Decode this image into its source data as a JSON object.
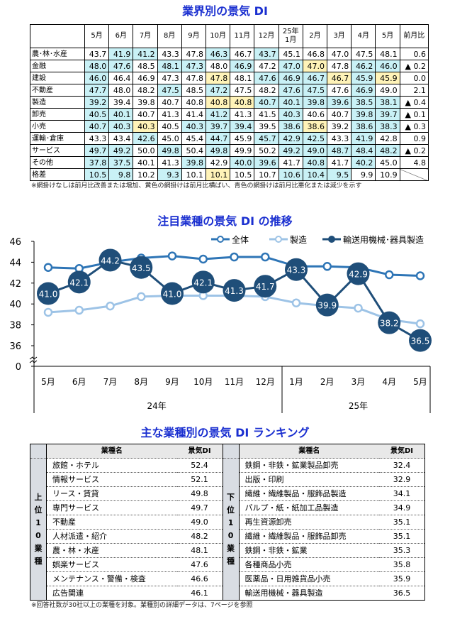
{
  "table1": {
    "title": "業界別の景気 DI",
    "headers": [
      "5月",
      "6月",
      "7月",
      "8月",
      "9月",
      "10月",
      "11月",
      "12月",
      "25年\n1月",
      "2月",
      "3月",
      "4月",
      "5月",
      "前月比"
    ],
    "rows": [
      {
        "label": "農･林･水産",
        "values": [
          "43.7",
          "41.9",
          "41.2",
          "43.3",
          "47.8",
          "46.3",
          "46.7",
          "43.7",
          "45.1",
          "46.8",
          "47.0",
          "47.5",
          "48.1"
        ],
        "shade": "nbbnnbnbnnnnn",
        "change": "0.6"
      },
      {
        "label": "金融",
        "values": [
          "48.0",
          "47.6",
          "48.5",
          "48.1",
          "47.3",
          "48.0",
          "46.9",
          "47.2",
          "47.0",
          "47.0",
          "47.8",
          "46.2",
          "46.0"
        ],
        "shade": "bbnbbnbnbynbb",
        "change": "▲ 0.2"
      },
      {
        "label": "建設",
        "values": [
          "46.0",
          "46.4",
          "46.9",
          "47.3",
          "47.8",
          "47.8",
          "48.1",
          "47.6",
          "46.9",
          "46.7",
          "46.7",
          "45.9",
          "45.9"
        ],
        "shade": "bnnnnynbbbyby",
        "change": "0.0"
      },
      {
        "label": "不動産",
        "values": [
          "47.7",
          "48.0",
          "48.2",
          "47.5",
          "48.5",
          "47.2",
          "47.5",
          "48.2",
          "47.6",
          "47.5",
          "47.6",
          "46.9",
          "49.0"
        ],
        "shade": "bnnbnbnnbbnbn",
        "change": "2.1"
      },
      {
        "label": "製造",
        "values": [
          "39.2",
          "39.4",
          "39.8",
          "40.7",
          "40.8",
          "40.8",
          "40.8",
          "40.7",
          "40.1",
          "39.8",
          "39.6",
          "38.5",
          "38.1"
        ],
        "shade": "bnnnnyybbbbbb",
        "change": "▲ 0.4"
      },
      {
        "label": "卸売",
        "values": [
          "40.5",
          "40.1",
          "40.7",
          "41.3",
          "41.4",
          "41.2",
          "41.3",
          "41.5",
          "40.3",
          "40.6",
          "40.7",
          "39.8",
          "39.7"
        ],
        "shade": "bbnnnbnnbnnbb",
        "change": "▲ 0.1"
      },
      {
        "label": "小売",
        "values": [
          "40.7",
          "40.3",
          "40.3",
          "40.5",
          "40.3",
          "39.7",
          "39.4",
          "39.5",
          "38.6",
          "38.6",
          "39.2",
          "38.6",
          "38.3"
        ],
        "shade": "bbynbbbnbynbb",
        "change": "▲ 0.3"
      },
      {
        "label": "運輸･倉庫",
        "values": [
          "43.3",
          "43.4",
          "42.6",
          "45.0",
          "45.4",
          "44.7",
          "45.9",
          "45.7",
          "42.9",
          "42.5",
          "43.3",
          "41.9",
          "42.8"
        ],
        "shade": "nnbnnbnbbbnbn",
        "change": "0.9"
      },
      {
        "label": "サービス",
        "values": [
          "49.7",
          "49.2",
          "50.0",
          "49.8",
          "50.4",
          "49.8",
          "49.9",
          "50.2",
          "49.2",
          "49.0",
          "48.7",
          "48.4",
          "48.2"
        ],
        "shade": "bbnbnbnnbbbbb",
        "change": "▲ 0.2"
      },
      {
        "label": "その他",
        "values": [
          "37.8",
          "37.5",
          "40.1",
          "41.3",
          "39.8",
          "42.9",
          "40.0",
          "39.6",
          "41.7",
          "40.8",
          "41.7",
          "40.2",
          "45.0"
        ],
        "shade": "bbnnbnbbnbnbn",
        "change": "4.8"
      },
      {
        "label": "格差",
        "values": [
          "10.5",
          "9.8",
          "10.2",
          "9.3",
          "10.1",
          "10.1",
          "10.5",
          "10.7",
          "10.6",
          "10.4",
          "9.5",
          "9.9",
          "10.9"
        ],
        "shade": "bbnbnynnbbbnn",
        "change": ""
      }
    ],
    "shade_colors": {
      "blue": "#c9f1f6",
      "yellow": "#fff3b8"
    },
    "note": "※網掛けなしは前月比改善または増加、黄色の網掛けは前月比横ばい、青色の網掛けは前月比悪化または減少を示す"
  },
  "chart_data": {
    "type": "line",
    "title": "注目業種の景気 DI の推移",
    "categories": [
      "5月",
      "6月",
      "7月",
      "8月",
      "9月",
      "10月",
      "11月",
      "12月",
      "1月",
      "2月",
      "3月",
      "4月",
      "5月"
    ],
    "year_groups": [
      {
        "label": "24年",
        "count": 8
      },
      {
        "label": "25年",
        "count": 5
      }
    ],
    "yticks": [
      "0",
      "36",
      "38",
      "40",
      "42",
      "44",
      "46"
    ],
    "ylim": [
      36,
      46
    ],
    "axis_break": true,
    "legend_position": "top-right",
    "series": [
      {
        "name": "全体",
        "color": "#2e75b6",
        "marker": "open-circle",
        "values": [
          43.5,
          43.4,
          44.0,
          44.4,
          44.6,
          44.3,
          44.5,
          44.5,
          43.6,
          43.6,
          43.5,
          42.8,
          42.7
        ]
      },
      {
        "name": "製造",
        "color": "#9dc3e6",
        "marker": "open-circle",
        "values": [
          39.2,
          39.4,
          39.8,
          40.7,
          40.8,
          40.8,
          40.8,
          40.7,
          40.1,
          39.8,
          39.6,
          38.5,
          38.1
        ]
      },
      {
        "name": "輸送用機械･器具製造",
        "color": "#1f4e79",
        "marker": "labeled-circle",
        "values": [
          41.0,
          42.1,
          44.2,
          43.5,
          41.0,
          42.1,
          41.3,
          41.7,
          43.3,
          39.9,
          42.9,
          38.2,
          36.5
        ]
      }
    ]
  },
  "ranking": {
    "title": "主な業種別の景気 DI ランキング",
    "header_name": "業種名",
    "header_value": "景気DI",
    "top_label": "上位10業種",
    "bottom_label": "下位10業種",
    "top": [
      [
        "旅館・ホテル",
        "52.4"
      ],
      [
        "情報サービス",
        "52.1"
      ],
      [
        "リース・賃貸",
        "49.8"
      ],
      [
        "専門サービス",
        "49.7"
      ],
      [
        "不動産",
        "49.0"
      ],
      [
        "人材派遣・紹介",
        "48.2"
      ],
      [
        "農・林・水産",
        "48.1"
      ],
      [
        "娯楽サービス",
        "47.6"
      ],
      [
        "メンテナンス・警備・検査",
        "46.6"
      ],
      [
        "広告関連",
        "46.1"
      ]
    ],
    "bottom": [
      [
        "鉄鋼・非鉄・鉱業製品卸売",
        "32.4"
      ],
      [
        "出版・印刷",
        "32.9"
      ],
      [
        "繊維・繊維製品・服飾品製造",
        "34.1"
      ],
      [
        "パルプ・紙・紙加工品製造",
        "34.9"
      ],
      [
        "再生資源卸売",
        "35.1"
      ],
      [
        "繊維・繊維製品・服飾品卸売",
        "35.1"
      ],
      [
        "鉄鋼・非鉄・鉱業",
        "35.3"
      ],
      [
        "各種商品小売",
        "35.8"
      ],
      [
        "医薬品・日用雑貨品小売",
        "35.9"
      ],
      [
        "輸送用機械・器具製造",
        "36.5"
      ]
    ],
    "note": "※回答社数が30社以上の業種を対象。業種別の詳細データは、7ページを参照"
  }
}
